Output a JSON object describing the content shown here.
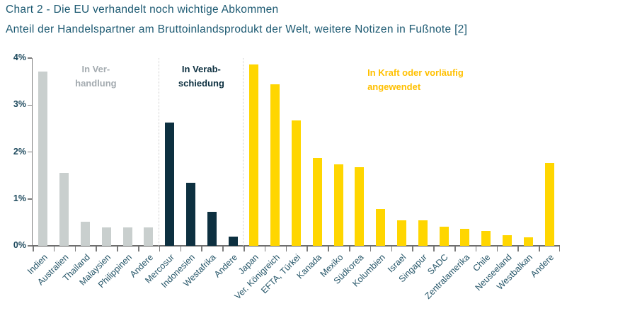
{
  "header": {
    "title": "Chart 2 - Die EU verhandelt noch wichtige Abkommen",
    "subtitle": "Anteil der Handelspartner am Bruttoinlandsprodukt der Welt, weitere Notizen in Fußnote [2]"
  },
  "colors": {
    "heading_text": "#1d5a72",
    "axis_text": "#1e4a5e"
  },
  "chart_data": {
    "type": "bar",
    "title": "Chart 2 - Die EU verhandelt noch wichtige Abkommen",
    "subtitle": "Anteil der Handelspartner am Bruttoinlandsprodukt der Welt, weitere Notizen in Fußnote [2]",
    "xlabel": "",
    "ylabel": "",
    "ylim": [
      0,
      4
    ],
    "ytick_labels_top_to_bottom": [
      "4%",
      "3%",
      "2%",
      "1%",
      "0%"
    ],
    "grid": false,
    "legend_position": "annotations-inside-plot",
    "groups": [
      {
        "name": "In Verhandlung",
        "label_lines": [
          "In Ver-",
          "handlung"
        ],
        "color": "#c9cfce",
        "text_color": "#a4abb0",
        "categories": [
          "Indien",
          "Australien",
          "Thailand",
          "Malaysien",
          "Philippinen",
          "Andere"
        ],
        "values": [
          3.72,
          1.55,
          0.51,
          0.4,
          0.4,
          0.39
        ]
      },
      {
        "name": "In Verabschiedung",
        "label_lines": [
          "In Verab-",
          "schiedung"
        ],
        "color": "#0d3040",
        "text_color": "#0d3040",
        "categories": [
          "Mercosur",
          "Indonesien",
          "Westafrika",
          "Andere"
        ],
        "values": [
          2.62,
          1.34,
          0.72,
          0.2
        ]
      },
      {
        "name": "In Kraft oder vorläufig angewendet",
        "label_lines": [
          "In Kraft oder vorläufig",
          "angewendet"
        ],
        "color": "#ffd600",
        "text_color": "#ffc000",
        "categories": [
          "Japan",
          "Ver. Königreich",
          "EFTA, Türkei",
          "Kanada",
          "Mexiko",
          "Südkorea",
          "Kolumbien",
          "Israel",
          "Singapur",
          "SADC",
          "Zentralamerika",
          "Chile",
          "Neuseeland",
          "Westbalkan",
          "Andere"
        ],
        "values": [
          3.87,
          3.44,
          2.67,
          1.87,
          1.74,
          1.68,
          0.78,
          0.55,
          0.54,
          0.41,
          0.37,
          0.32,
          0.23,
          0.18,
          1.77
        ]
      }
    ]
  }
}
